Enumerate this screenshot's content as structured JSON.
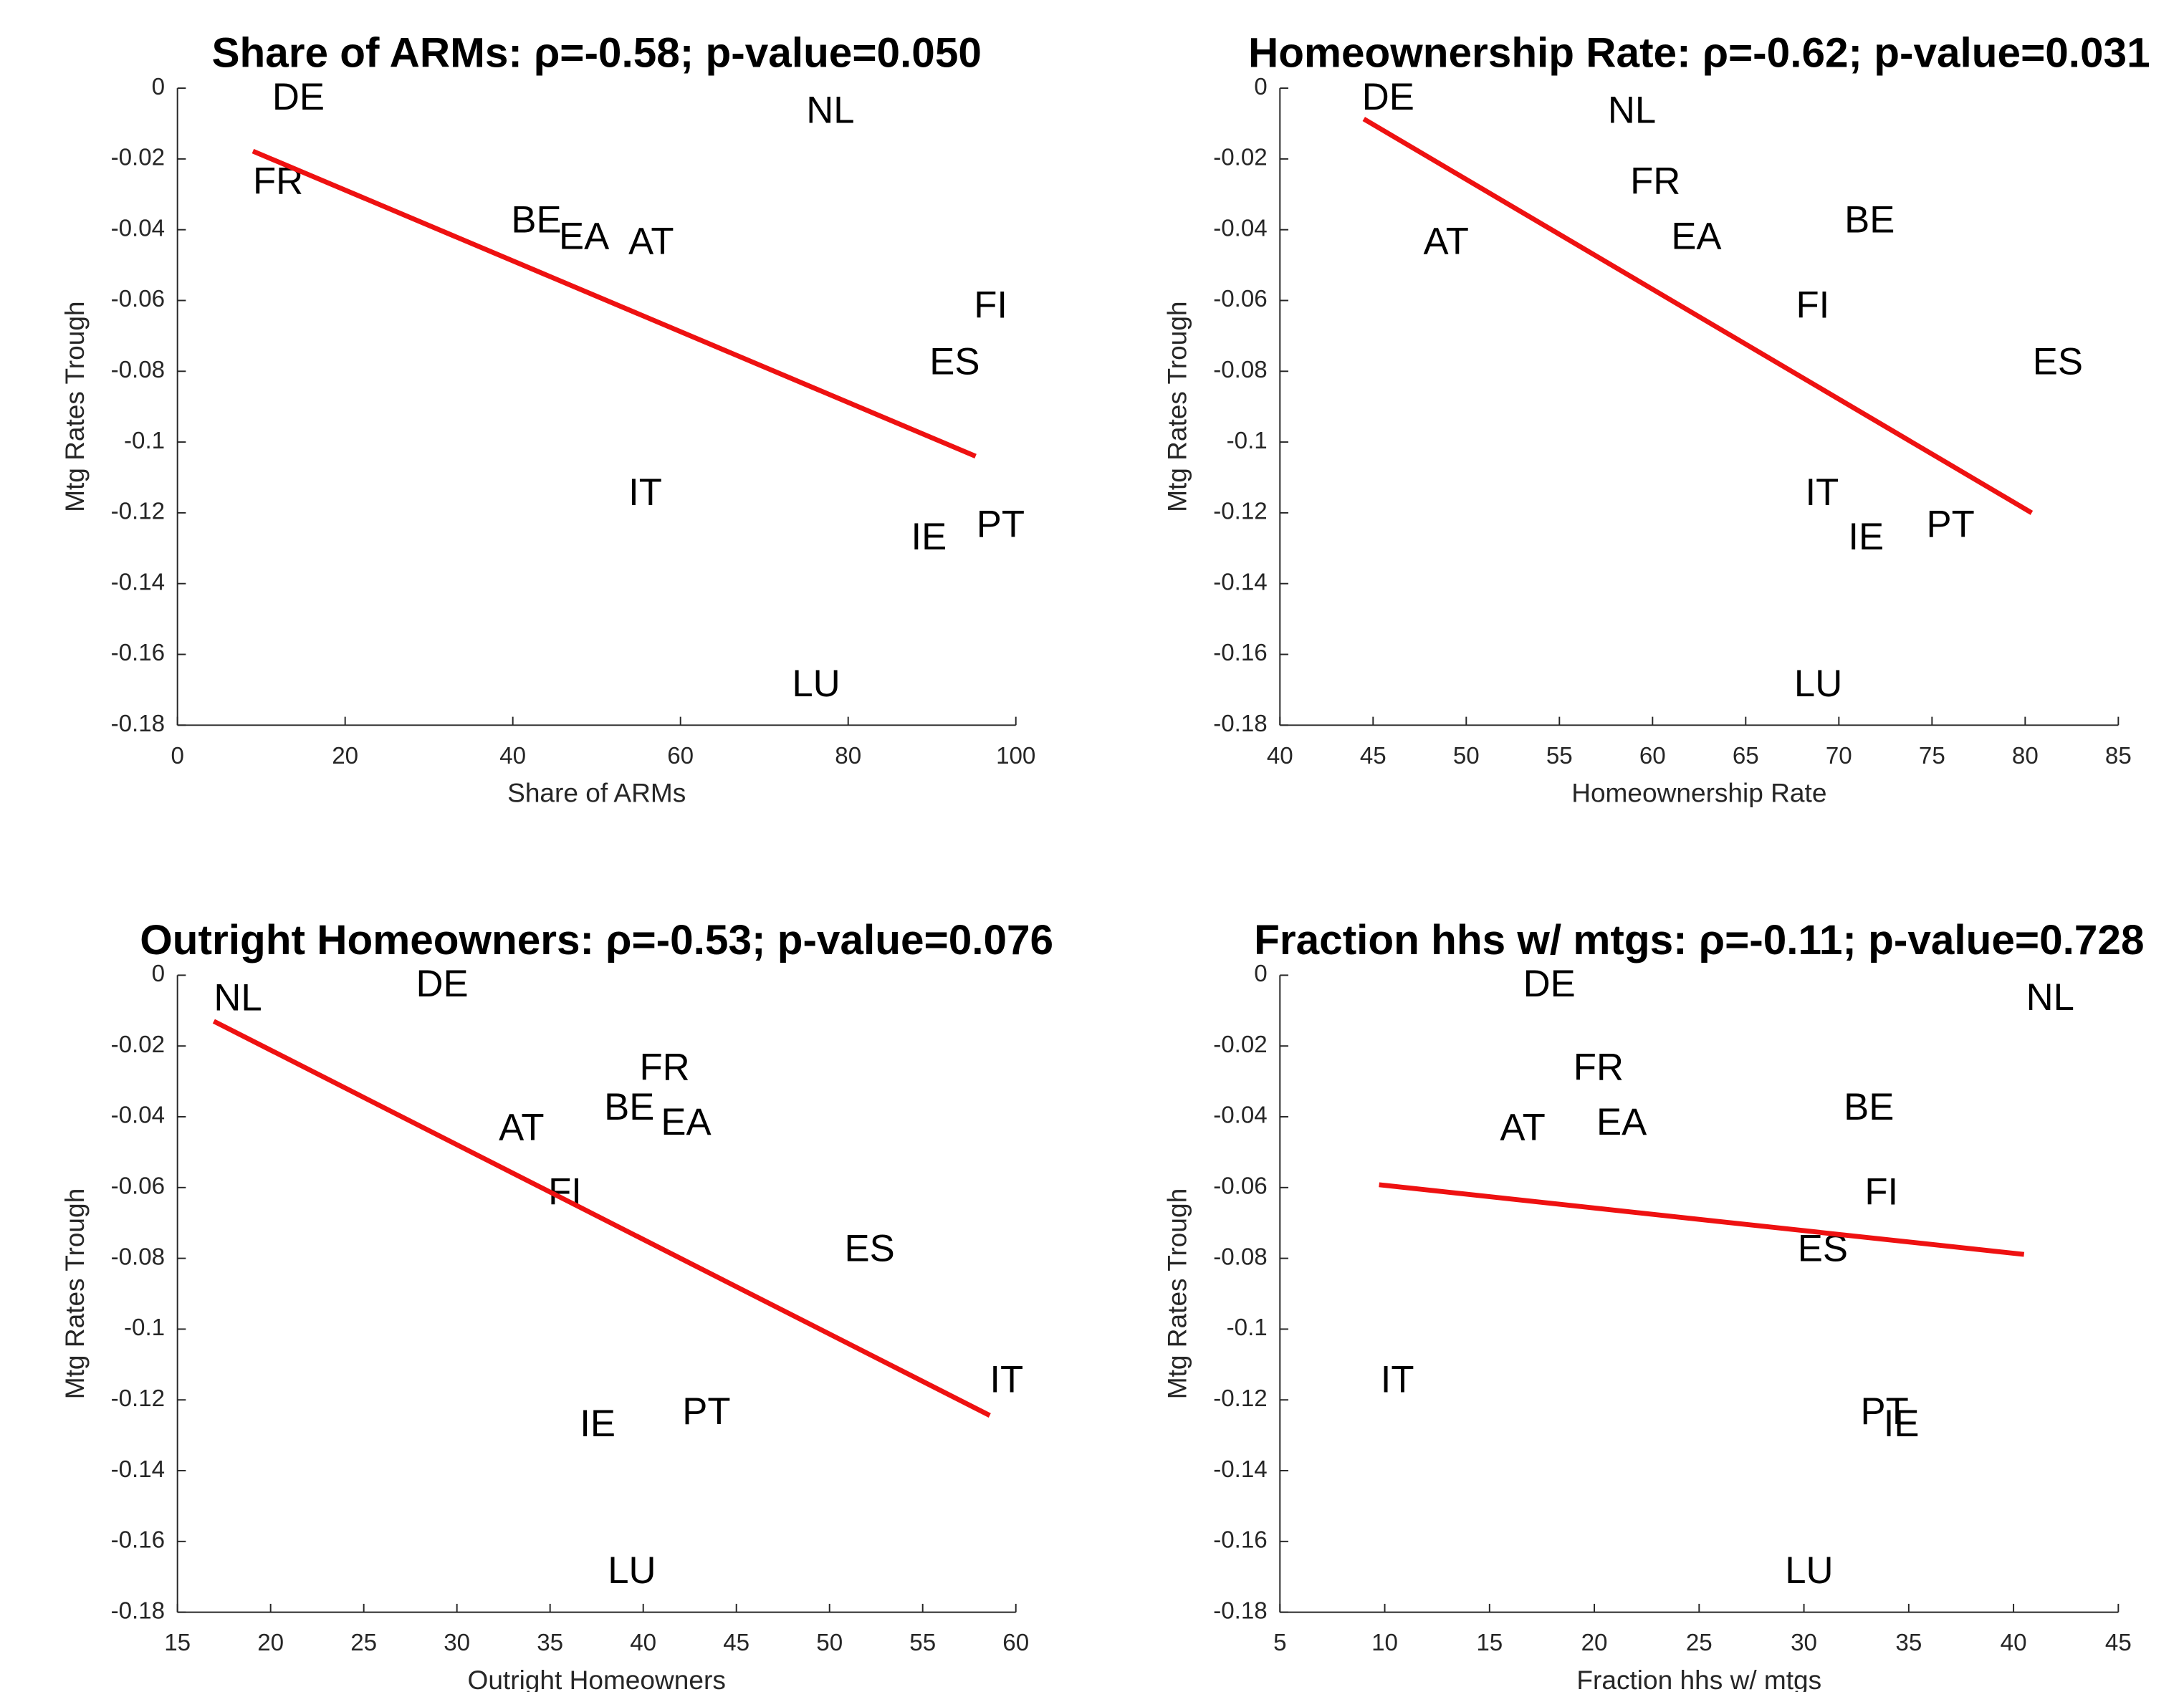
{
  "chart_data": [
    {
      "type": "scatter",
      "title": "Share of ARMs: ρ=-0.58;  p-value=0.050",
      "xlabel": "Share of ARMs",
      "ylabel": "Mtg Rates Trough",
      "categories": [
        "DE",
        "NL",
        "FR",
        "BE",
        "EA",
        "AT",
        "FI",
        "ES",
        "IT",
        "IE",
        "PT",
        "LU"
      ],
      "x": [
        11.3,
        75,
        9,
        39.8,
        45.5,
        53.8,
        95,
        89.7,
        53.8,
        87.5,
        95.3,
        73.3
      ],
      "values": [
        -0.0032,
        -0.007,
        -0.027,
        -0.038,
        -0.0426,
        -0.044,
        -0.062,
        -0.078,
        -0.115,
        -0.1275,
        -0.124,
        -0.169
      ],
      "xlim": [
        0,
        100
      ],
      "ylim": [
        -0.18,
        0
      ],
      "xticks": [
        0,
        20,
        40,
        60,
        80,
        100
      ],
      "yticks": [
        0,
        -0.02,
        -0.04,
        -0.06,
        -0.08,
        -0.1,
        -0.12,
        -0.14,
        -0.16,
        -0.18
      ],
      "fit_line": {
        "color": "#ee1111",
        "x": [
          9,
          95.2
        ],
        "values": [
          -0.0178,
          -0.104
        ]
      }
    },
    {
      "type": "scatter",
      "title": "Homeownership Rate: ρ=-0.62;  p-value=0.031",
      "xlabel": "Homeownership Rate",
      "ylabel": "Mtg Rates Trough",
      "categories": [
        "DE",
        "NL",
        "FR",
        "EA",
        "AT",
        "BE",
        "FI",
        "ES",
        "IT",
        "IE",
        "PT",
        "LU"
      ],
      "x": [
        44.4,
        57.6,
        58.8,
        61,
        47.7,
        70.3,
        67.7,
        80.4,
        68.2,
        70.5,
        74.7,
        67.6
      ],
      "values": [
        -0.0032,
        -0.007,
        -0.027,
        -0.0426,
        -0.044,
        -0.038,
        -0.062,
        -0.078,
        -0.115,
        -0.1275,
        -0.124,
        -0.169
      ],
      "xlim": [
        40,
        85
      ],
      "ylim": [
        -0.18,
        0
      ],
      "xticks": [
        40,
        45,
        50,
        55,
        60,
        65,
        70,
        75,
        80,
        85
      ],
      "yticks": [
        0,
        -0.02,
        -0.04,
        -0.06,
        -0.08,
        -0.1,
        -0.12,
        -0.14,
        -0.16,
        -0.18
      ],
      "fit_line": {
        "color": "#ee1111",
        "x": [
          44.5,
          80.35
        ],
        "values": [
          -0.0087,
          -0.12
        ]
      }
    },
    {
      "type": "scatter",
      "title": "Outright Homeowners: ρ=-0.53;  p-value=0.076",
      "xlabel": "Outright Homeowners",
      "ylabel": "Mtg Rates Trough",
      "categories": [
        "NL",
        "DE",
        "FR",
        "BE",
        "EA",
        "AT",
        "FI",
        "ES",
        "IT",
        "IE",
        "PT",
        "LU"
      ],
      "x": [
        16.95,
        27.8,
        39.8,
        37.9,
        40.95,
        32.25,
        34.9,
        50.8,
        58.6,
        36.6,
        42.1,
        38.1
      ],
      "values": [
        -0.0071,
        -0.0032,
        -0.0268,
        -0.038,
        -0.0422,
        -0.0438,
        -0.062,
        -0.078,
        -0.115,
        -0.1275,
        -0.124,
        -0.169
      ],
      "xlim": [
        15,
        60
      ],
      "ylim": [
        -0.18,
        0
      ],
      "xticks": [
        15,
        20,
        25,
        30,
        35,
        40,
        45,
        50,
        55,
        60
      ],
      "yticks": [
        0,
        -0.02,
        -0.04,
        -0.06,
        -0.08,
        -0.1,
        -0.12,
        -0.14,
        -0.16,
        -0.18
      ],
      "fit_line": {
        "color": "#ee1111",
        "x": [
          16.95,
          58.6
        ],
        "values": [
          -0.013,
          -0.1244
        ]
      }
    },
    {
      "type": "scatter",
      "title": "Fraction hhs w/ mtgs: ρ=-0.11;  p-value=0.728",
      "xlabel": "Fraction hhs w/ mtgs",
      "ylabel": "Mtg Rates Trough",
      "categories": [
        "DE",
        "NL",
        "FR",
        "BE",
        "EA",
        "AT",
        "FI",
        "ES",
        "IT",
        "IE",
        "PT",
        "LU"
      ],
      "x": [
        16.6,
        40.6,
        19,
        31.9,
        20.1,
        15.5,
        32.9,
        29.7,
        9.8,
        33.8,
        32.7,
        29.1
      ],
      "values": [
        -0.0032,
        -0.007,
        -0.0268,
        -0.038,
        -0.0422,
        -0.0438,
        -0.062,
        -0.078,
        -0.115,
        -0.1275,
        -0.124,
        -0.169
      ],
      "xlim": [
        5,
        45
      ],
      "ylim": [
        -0.18,
        0
      ],
      "xticks": [
        5,
        10,
        15,
        20,
        25,
        30,
        35,
        40,
        45
      ],
      "yticks": [
        0,
        -0.02,
        -0.04,
        -0.06,
        -0.08,
        -0.1,
        -0.12,
        -0.14,
        -0.16,
        -0.18
      ],
      "fit_line": {
        "color": "#ee1111",
        "x": [
          9.73,
          40.5
        ],
        "values": [
          -0.0592,
          -0.0789
        ]
      }
    }
  ]
}
